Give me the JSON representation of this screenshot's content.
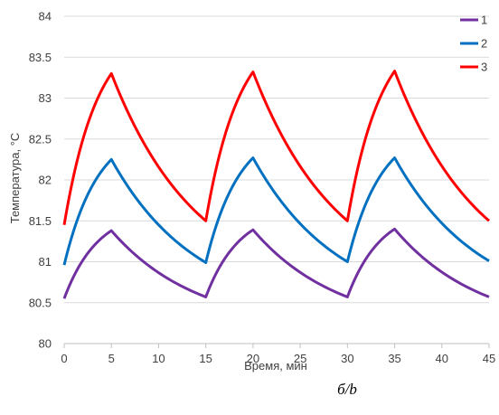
{
  "chart_data": {
    "type": "line",
    "xlabel": "Время, мин",
    "ylabel": "Температура, °С",
    "caption": "б/b",
    "xlim": [
      0,
      45
    ],
    "ylim": [
      80,
      84
    ],
    "xticks": [
      "0",
      "5",
      "10",
      "15",
      "20",
      "25",
      "30",
      "35",
      "40",
      "45"
    ],
    "yticks": [
      "80",
      "80.5",
      "81",
      "81.5",
      "82",
      "82.5",
      "83",
      "83.5",
      "84"
    ],
    "grid": "horizontal",
    "legend_position": "top-right",
    "series": [
      {
        "name": "1",
        "color": "#7030a0",
        "x": [
          0,
          5,
          15,
          20,
          30,
          35,
          45
        ],
        "y": [
          80.55,
          81.38,
          80.57,
          81.39,
          80.57,
          81.4,
          80.57
        ]
      },
      {
        "name": "2",
        "color": "#0070c0",
        "x": [
          0,
          5,
          15,
          20,
          30,
          35,
          45
        ],
        "y": [
          80.96,
          82.25,
          80.99,
          82.27,
          81.0,
          82.27,
          81.01
        ]
      },
      {
        "name": "3",
        "color": "#ff0000",
        "x": [
          0,
          5,
          15,
          20,
          30,
          35,
          45
        ],
        "y": [
          81.45,
          83.3,
          81.5,
          83.32,
          81.5,
          83.33,
          81.5
        ]
      }
    ]
  }
}
